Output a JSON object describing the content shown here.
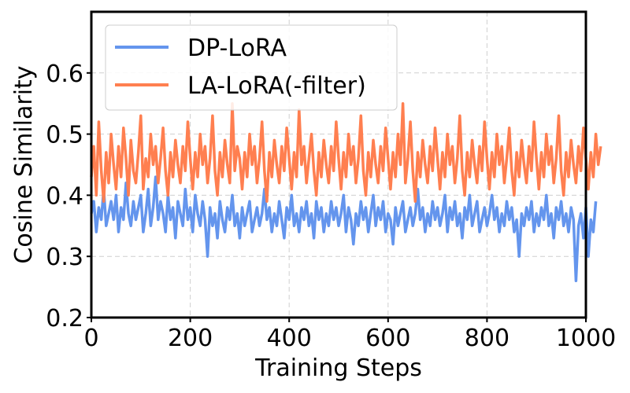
{
  "chart_data": {
    "type": "line",
    "title": "",
    "xlabel": "Training Steps",
    "ylabel": "Cosine Similarity",
    "xlim": [
      0,
      1000
    ],
    "ylim": [
      0.2,
      0.7
    ],
    "xticks": [
      0,
      200,
      400,
      600,
      800,
      1000
    ],
    "xtick_labels": [
      "0",
      "200",
      "400",
      "600",
      "800",
      "1000"
    ],
    "yticks": [
      0.2,
      0.3,
      0.4,
      0.5,
      0.6
    ],
    "ytick_labels": [
      "0.2",
      "0.3",
      "0.4",
      "0.5",
      "0.6"
    ],
    "grid": true,
    "legend_position": "top-left",
    "x_step": 5,
    "series": [
      {
        "name": "DP-LoRA",
        "color": "#6495ED",
        "values": [
          0.37,
          0.39,
          0.34,
          0.38,
          0.36,
          0.41,
          0.35,
          0.37,
          0.39,
          0.36,
          0.4,
          0.34,
          0.38,
          0.36,
          0.42,
          0.37,
          0.35,
          0.39,
          0.36,
          0.38,
          0.4,
          0.34,
          0.37,
          0.41,
          0.35,
          0.38,
          0.43,
          0.36,
          0.39,
          0.37,
          0.34,
          0.4,
          0.36,
          0.38,
          0.33,
          0.39,
          0.37,
          0.35,
          0.41,
          0.36,
          0.38,
          0.34,
          0.4,
          0.37,
          0.35,
          0.39,
          0.36,
          0.3,
          0.38,
          0.35,
          0.37,
          0.33,
          0.39,
          0.36,
          0.34,
          0.38,
          0.36,
          0.4,
          0.35,
          0.37,
          0.33,
          0.38,
          0.35,
          0.37,
          0.39,
          0.34,
          0.36,
          0.38,
          0.35,
          0.37,
          0.41,
          0.36,
          0.38,
          0.34,
          0.37,
          0.35,
          0.39,
          0.36,
          0.33,
          0.38,
          0.36,
          0.4,
          0.35,
          0.37,
          0.34,
          0.38,
          0.36,
          0.39,
          0.35,
          0.37,
          0.33,
          0.39,
          0.36,
          0.38,
          0.34,
          0.37,
          0.35,
          0.39,
          0.36,
          0.38,
          0.35,
          0.37,
          0.4,
          0.34,
          0.38,
          0.36,
          0.32,
          0.37,
          0.35,
          0.39,
          0.36,
          0.38,
          0.34,
          0.37,
          0.4,
          0.35,
          0.38,
          0.36,
          0.39,
          0.34,
          0.37,
          0.36,
          0.32,
          0.38,
          0.35,
          0.37,
          0.39,
          0.34,
          0.36,
          0.38,
          0.35,
          0.37,
          0.41,
          0.36,
          0.38,
          0.34,
          0.37,
          0.35,
          0.39,
          0.36,
          0.38,
          0.35,
          0.37,
          0.4,
          0.34,
          0.38,
          0.36,
          0.39,
          0.35,
          0.37,
          0.33,
          0.38,
          0.36,
          0.4,
          0.35,
          0.37,
          0.39,
          0.34,
          0.36,
          0.38,
          0.35,
          0.37,
          0.4,
          0.36,
          0.38,
          0.34,
          0.37,
          0.35,
          0.39,
          0.36,
          0.38,
          0.34,
          0.36,
          0.3,
          0.37,
          0.35,
          0.38,
          0.36,
          0.39,
          0.34,
          0.37,
          0.35,
          0.38,
          0.36,
          0.4,
          0.35,
          0.37,
          0.33,
          0.38,
          0.36,
          0.39,
          0.35,
          0.37,
          0.34,
          0.38,
          0.36,
          0.26,
          0.35,
          0.37,
          0.33,
          0.38,
          0.3,
          0.36,
          0.34,
          0.39
        ]
      },
      {
        "name": "LA-LoRA(-filter)",
        "color": "#FF7F50",
        "values": [
          0.43,
          0.48,
          0.4,
          0.52,
          0.44,
          0.39,
          0.47,
          0.42,
          0.5,
          0.45,
          0.41,
          0.48,
          0.43,
          0.51,
          0.46,
          0.4,
          0.49,
          0.44,
          0.42,
          0.47,
          0.53,
          0.41,
          0.46,
          0.43,
          0.5,
          0.45,
          0.48,
          0.42,
          0.46,
          0.51,
          0.44,
          0.4,
          0.47,
          0.43,
          0.49,
          0.45,
          0.42,
          0.48,
          0.44,
          0.52,
          0.46,
          0.41,
          0.47,
          0.43,
          0.5,
          0.45,
          0.48,
          0.42,
          0.46,
          0.53,
          0.44,
          0.4,
          0.47,
          0.43,
          0.49,
          0.45,
          0.42,
          0.55,
          0.44,
          0.48,
          0.46,
          0.41,
          0.47,
          0.43,
          0.5,
          0.45,
          0.48,
          0.42,
          0.46,
          0.52,
          0.44,
          0.39,
          0.47,
          0.43,
          0.49,
          0.45,
          0.42,
          0.48,
          0.44,
          0.51,
          0.46,
          0.41,
          0.47,
          0.43,
          0.54,
          0.45,
          0.48,
          0.42,
          0.46,
          0.5,
          0.44,
          0.4,
          0.47,
          0.43,
          0.49,
          0.45,
          0.42,
          0.48,
          0.44,
          0.52,
          0.46,
          0.41,
          0.47,
          0.43,
          0.5,
          0.45,
          0.48,
          0.42,
          0.46,
          0.53,
          0.44,
          0.4,
          0.47,
          0.43,
          0.49,
          0.45,
          0.42,
          0.48,
          0.44,
          0.51,
          0.46,
          0.41,
          0.47,
          0.43,
          0.5,
          0.45,
          0.55,
          0.42,
          0.46,
          0.52,
          0.44,
          0.39,
          0.47,
          0.43,
          0.49,
          0.45,
          0.42,
          0.48,
          0.44,
          0.51,
          0.46,
          0.41,
          0.47,
          0.43,
          0.5,
          0.45,
          0.48,
          0.42,
          0.46,
          0.53,
          0.44,
          0.4,
          0.47,
          0.43,
          0.49,
          0.45,
          0.42,
          0.48,
          0.44,
          0.52,
          0.46,
          0.41,
          0.47,
          0.43,
          0.5,
          0.45,
          0.48,
          0.42,
          0.46,
          0.51,
          0.44,
          0.4,
          0.47,
          0.43,
          0.49,
          0.45,
          0.42,
          0.48,
          0.44,
          0.52,
          0.46,
          0.41,
          0.47,
          0.43,
          0.5,
          0.45,
          0.48,
          0.42,
          0.46,
          0.53,
          0.44,
          0.4,
          0.47,
          0.43,
          0.49,
          0.45,
          0.42,
          0.48,
          0.44,
          0.51,
          0.46,
          0.41,
          0.47,
          0.43,
          0.5,
          0.45,
          0.48
        ]
      }
    ]
  }
}
